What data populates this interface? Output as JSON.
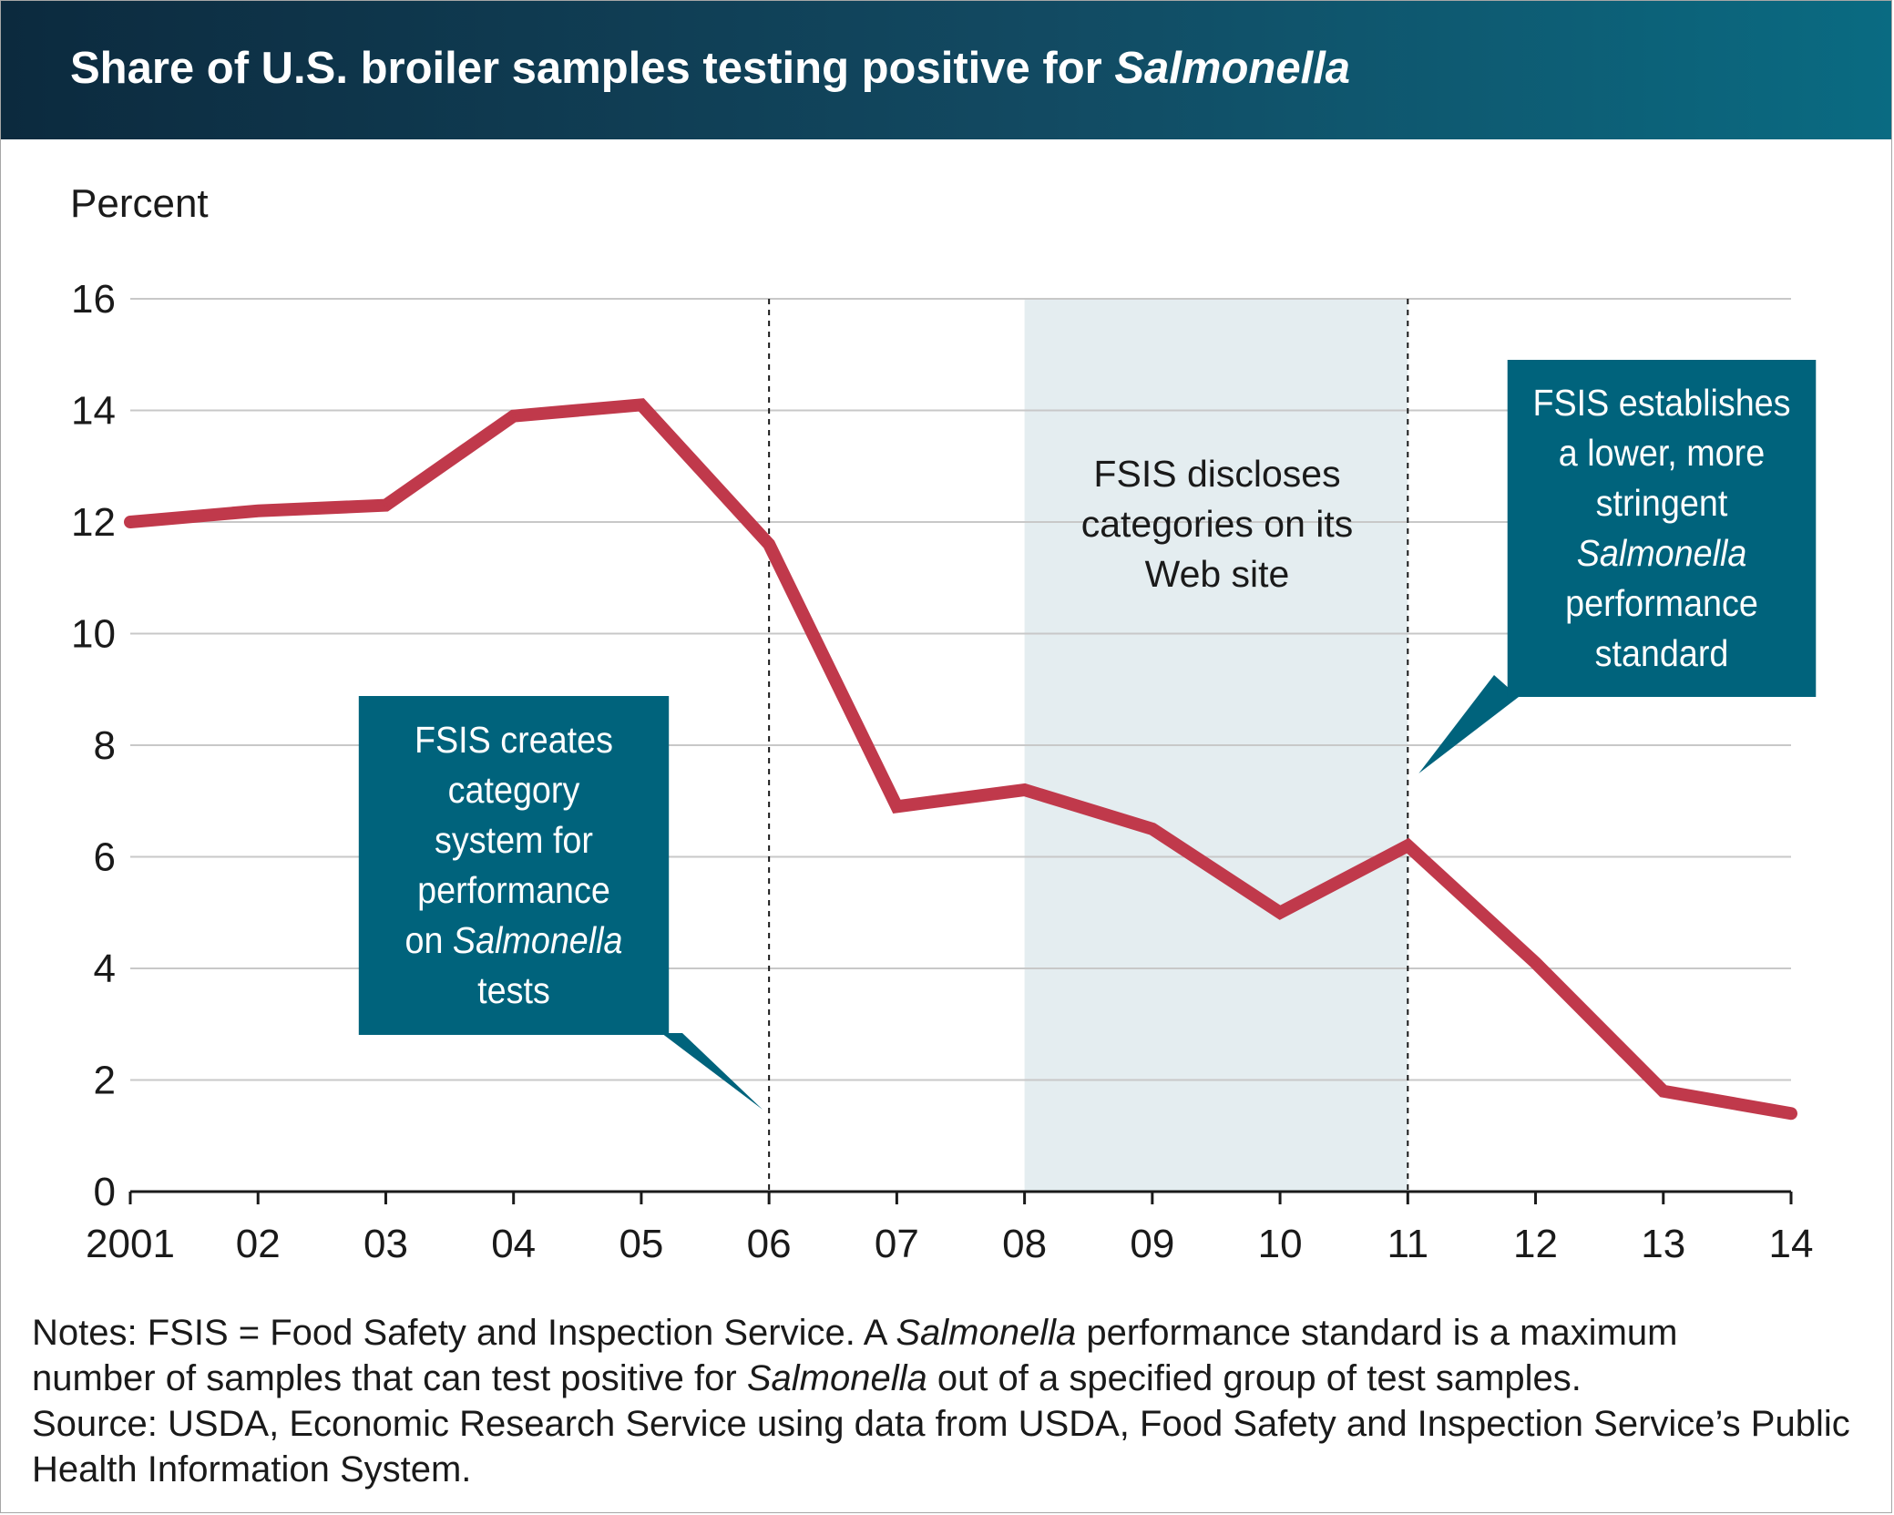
{
  "title": {
    "main": "Share of U.S. broiler samples testing positive for ",
    "emphasis": "Salmonella"
  },
  "colors": {
    "line": "#c0394b",
    "annotation_box": "#00637c",
    "shaded_period": "#e4edf0",
    "gridline": "#c8c8c8",
    "header_start": "#0c2a3e",
    "header_end": "#0a6b82"
  },
  "chart_data": {
    "type": "line",
    "title": "Share of U.S. broiler samples testing positive for Salmonella",
    "ylabel": "Percent",
    "xlabel": "",
    "x": [
      2001,
      2002,
      2003,
      2004,
      2005,
      2006,
      2007,
      2008,
      2009,
      2010,
      2011,
      2012,
      2013,
      2014
    ],
    "x_tick_labels": [
      "2001",
      "02",
      "03",
      "04",
      "05",
      "06",
      "07",
      "08",
      "09",
      "10",
      "11",
      "12",
      "13",
      "14"
    ],
    "series": [
      {
        "values": [
          12.0,
          12.2,
          12.3,
          13.9,
          14.1,
          11.6,
          6.9,
          7.2,
          6.5,
          5.0,
          6.2,
          4.1,
          1.8,
          1.4
        ]
      }
    ],
    "ylim": [
      0,
      16
    ],
    "y_ticks": [
      0,
      2,
      4,
      6,
      8,
      10,
      12,
      14,
      16
    ],
    "xlim": [
      2001,
      2014
    ],
    "grid": "horizontal",
    "shaded_range": [
      2008,
      2011
    ],
    "vertical_markers": [
      2006,
      2011
    ],
    "annotations": {
      "creates": {
        "lines": [
          "FSIS creates",
          "category",
          "system for",
          "performance"
        ],
        "last_line_prefix": "on ",
        "last_line_emphasis": "Salmonella",
        "final_line": "tests",
        "points_to_x": 2006
      },
      "discloses": {
        "lines": [
          "FSIS discloses",
          "categories on its",
          "Web site"
        ]
      },
      "establishes": {
        "lines": [
          "FSIS establishes",
          "a lower, more",
          "stringent"
        ],
        "emphasis_line": "Salmonella",
        "tail_lines": [
          "performance",
          "standard"
        ],
        "points_to_x": 2011
      }
    }
  },
  "notes": {
    "line1_pre": "Notes: FSIS = Food Safety and Inspection Service. A ",
    "line1_em": "Salmonella",
    "line1_post": " performance standard is a maximum",
    "line2_pre": "number of samples that can test positive for ",
    "line2_em": "Salmonella",
    "line2_post": " out of a specified group of test samples.",
    "source": "Source: USDA, Economic Research Service using data from USDA, Food Safety and Inspection Service’s Public Health Information System."
  }
}
